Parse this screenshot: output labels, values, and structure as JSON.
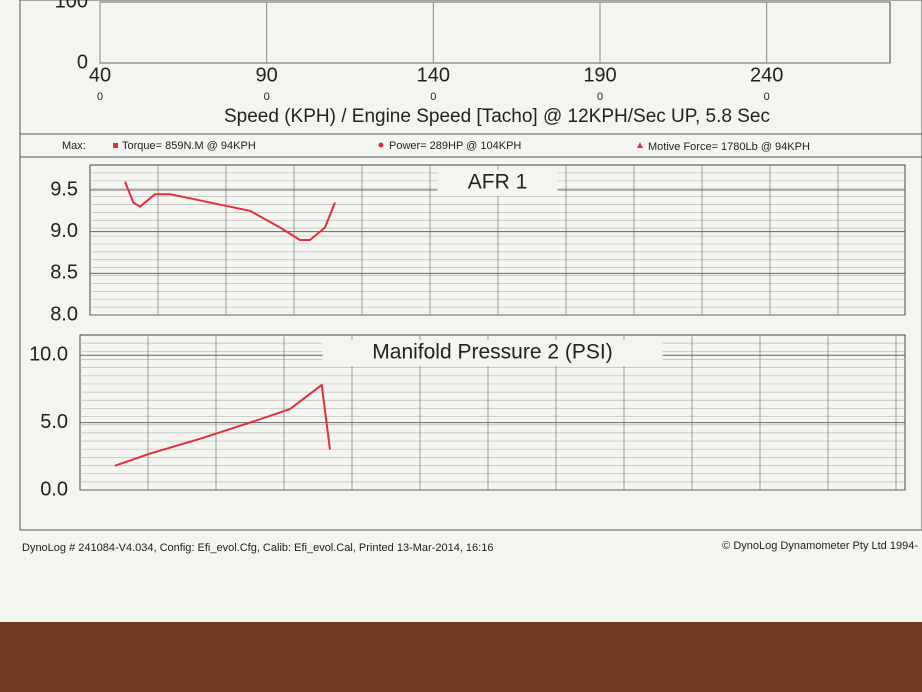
{
  "chart_data": [
    {
      "type": "line",
      "x_label": "Speed (KPH) / Engine Speed [Tacho] @ 12KPH/Sec UP, 5.8 Sec",
      "xlim": [
        40,
        280
      ],
      "xticks": [
        40,
        90,
        140,
        190,
        240
      ],
      "tacho_ticks": [
        "0",
        "0",
        "0",
        "0",
        "0"
      ],
      "ylim": [
        0,
        100
      ],
      "yticks": [
        0,
        100
      ],
      "grid": true,
      "series": []
    },
    {
      "type": "line",
      "title": "AFR 1",
      "xlim": [
        40,
        280
      ],
      "ylim": [
        8.0,
        9.8
      ],
      "yticks": [
        {
          "value": 8,
          "label": "8.0"
        },
        {
          "value": 8.5,
          "label": "8.5"
        },
        {
          "value": 9,
          "label": "9.0"
        },
        {
          "value": 9.5,
          "label": "9.5"
        }
      ],
      "grid": true,
      "series": [
        {
          "color": "#e0303c",
          "x": [
            47.5,
            50,
            52,
            56.5,
            61,
            67,
            79,
            85,
            94,
            100,
            103,
            107.5,
            110.5
          ],
          "values": [
            9.6,
            9.35,
            9.3,
            9.45,
            9.45,
            9.4,
            9.3,
            9.25,
            9.05,
            8.9,
            8.9,
            9.05,
            9.35
          ]
        }
      ]
    },
    {
      "type": "line",
      "title": "Manifold Pressure 2 (PSI)",
      "xlim": [
        40,
        280
      ],
      "ylim": [
        0,
        11.5
      ],
      "yticks": [
        {
          "value": 0,
          "label": "0.0"
        },
        {
          "value": 5,
          "label": "5.0"
        },
        {
          "value": 10,
          "label": "10.0"
        }
      ],
      "grid": true,
      "series": [
        {
          "color": "#e0303c",
          "x": [
            44.5,
            55,
            70,
            85,
            97,
            106.5,
            109
          ],
          "values": [
            1.8,
            2.7,
            3.8,
            5.0,
            6.0,
            7.8,
            3.0
          ]
        }
      ]
    }
  ],
  "max_line": {
    "label": "Max:",
    "items": [
      "Torque= 859N.M @ 94KPH",
      "Power= 289HP @ 104KPH",
      "Motive Force= 1780Lb @ 94KPH"
    ]
  },
  "footer": {
    "left": "DynoLog # 241084-V4.034, Config: Efi_evol.Cfg, Calib: Efi_evol.Cal, Printed 13-Mar-2014, 16:16",
    "right": "© DynoLog Dynamometer Pty Ltd 1994-"
  }
}
